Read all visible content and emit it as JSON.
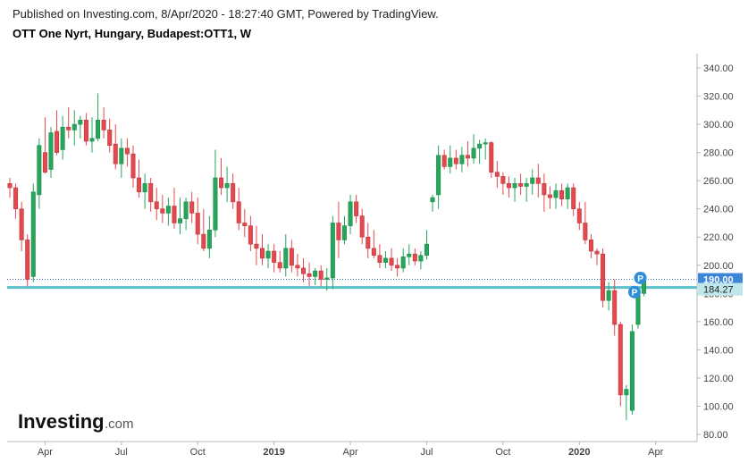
{
  "header": {
    "published": "Published on Investing.com, 8/Apr/2020 - 18:27:40 GMT, Powered by TradingView.",
    "title": "OTT One Nyrt, Hungary, Budapest:OTT1, W"
  },
  "logo": {
    "main": "Investing",
    "suffix": ".com"
  },
  "colors": {
    "up": "#26a65b",
    "down": "#e5484d",
    "line": "#5bc0c8",
    "price_tag": "#3b86d8",
    "badge": "#2f8fd8"
  },
  "chart_data": {
    "type": "candlestick",
    "title": "OTT One Nyrt, Hungary, Budapest:OTT1, W",
    "ylim": [
      80,
      340
    ],
    "y_ticks": [
      "340.00",
      "320.00",
      "300.00",
      "280.00",
      "260.00",
      "240.00",
      "220.00",
      "200.00",
      "180.00",
      "160.00",
      "140.00",
      "120.00",
      "100.00",
      "80.00"
    ],
    "x_ticks": [
      {
        "label": "Apr",
        "week": 6
      },
      {
        "label": "Jul",
        "week": 19
      },
      {
        "label": "Oct",
        "week": 32
      },
      {
        "label": "2019",
        "week": 45
      },
      {
        "label": "Apr",
        "week": 58
      },
      {
        "label": "Jul",
        "week": 71
      },
      {
        "label": "Oct",
        "week": 84
      },
      {
        "label": "2020",
        "week": 97
      },
      {
        "label": "Apr",
        "week": 110
      }
    ],
    "last_price": "190.00",
    "horizontal_line": "184.27",
    "badges": [
      "P",
      "P"
    ],
    "candles": [
      [
        0,
        258,
        262,
        248,
        255
      ],
      [
        1,
        255,
        258,
        233,
        240
      ],
      [
        2,
        240,
        245,
        210,
        218
      ],
      [
        3,
        218,
        222,
        185,
        190
      ],
      [
        4,
        192,
        258,
        188,
        252
      ],
      [
        5,
        250,
        290,
        240,
        285
      ],
      [
        6,
        280,
        305,
        265,
        266
      ],
      [
        7,
        268,
        298,
        262,
        294
      ],
      [
        8,
        295,
        310,
        278,
        280
      ],
      [
        9,
        282,
        306,
        275,
        298
      ],
      [
        10,
        298,
        312,
        290,
        296
      ],
      [
        11,
        296,
        310,
        285,
        300
      ],
      [
        12,
        300,
        306,
        290,
        303
      ],
      [
        13,
        303,
        308,
        285,
        288
      ],
      [
        14,
        288,
        305,
        280,
        290
      ],
      [
        15,
        290,
        322,
        288,
        303
      ],
      [
        16,
        303,
        312,
        290,
        296
      ],
      [
        17,
        296,
        304,
        280,
        285
      ],
      [
        18,
        286,
        300,
        268,
        272
      ],
      [
        19,
        272,
        290,
        262,
        283
      ],
      [
        20,
        283,
        290,
        270,
        279
      ],
      [
        21,
        279,
        285,
        255,
        262
      ],
      [
        22,
        262,
        275,
        248,
        252
      ],
      [
        23,
        252,
        265,
        240,
        258
      ],
      [
        24,
        258,
        262,
        238,
        245
      ],
      [
        25,
        245,
        255,
        232,
        240
      ],
      [
        26,
        240,
        250,
        230,
        237
      ],
      [
        27,
        237,
        248,
        228,
        242
      ],
      [
        28,
        242,
        255,
        226,
        230
      ],
      [
        29,
        230,
        248,
        222,
        233
      ],
      [
        30,
        233,
        248,
        225,
        245
      ],
      [
        31,
        245,
        252,
        230,
        237
      ],
      [
        32,
        237,
        248,
        215,
        222
      ],
      [
        33,
        222,
        240,
        210,
        212
      ],
      [
        34,
        212,
        235,
        205,
        225
      ],
      [
        35,
        225,
        282,
        220,
        262
      ],
      [
        36,
        262,
        276,
        250,
        255
      ],
      [
        37,
        255,
        270,
        245,
        258
      ],
      [
        38,
        258,
        265,
        240,
        245
      ],
      [
        39,
        245,
        255,
        225,
        230
      ],
      [
        40,
        230,
        240,
        220,
        228
      ],
      [
        41,
        228,
        235,
        210,
        215
      ],
      [
        42,
        215,
        228,
        200,
        212
      ],
      [
        43,
        212,
        222,
        200,
        205
      ],
      [
        44,
        205,
        215,
        198,
        210
      ],
      [
        45,
        210,
        215,
        195,
        202
      ],
      [
        46,
        202,
        210,
        195,
        198
      ],
      [
        47,
        198,
        222,
        192,
        212
      ],
      [
        48,
        212,
        218,
        195,
        200
      ],
      [
        49,
        200,
        208,
        192,
        198
      ],
      [
        50,
        198,
        205,
        188,
        194
      ],
      [
        51,
        194,
        202,
        185,
        192
      ],
      [
        52,
        192,
        198,
        186,
        196
      ],
      [
        53,
        196,
        200,
        185,
        190
      ],
      [
        54,
        190,
        198,
        182,
        191
      ],
      [
        55,
        191,
        235,
        183,
        230
      ],
      [
        56,
        230,
        245,
        205,
        218
      ],
      [
        57,
        218,
        235,
        215,
        228
      ],
      [
        58,
        228,
        250,
        222,
        245
      ],
      [
        59,
        245,
        250,
        230,
        235
      ],
      [
        60,
        235,
        240,
        215,
        220
      ],
      [
        61,
        220,
        230,
        205,
        212
      ],
      [
        62,
        212,
        225,
        205,
        207
      ],
      [
        63,
        207,
        215,
        198,
        202
      ],
      [
        64,
        202,
        210,
        198,
        205
      ],
      [
        65,
        205,
        212,
        196,
        200
      ],
      [
        66,
        200,
        205,
        192,
        198
      ],
      [
        67,
        198,
        212,
        195,
        206
      ],
      [
        68,
        206,
        215,
        200,
        208
      ],
      [
        69,
        208,
        212,
        200,
        203
      ],
      [
        70,
        203,
        210,
        197,
        207
      ],
      [
        71,
        207,
        225,
        204,
        215
      ],
      [
        72,
        245,
        250,
        238,
        248
      ],
      [
        73,
        250,
        285,
        240,
        278
      ],
      [
        74,
        278,
        282,
        268,
        270
      ],
      [
        75,
        270,
        285,
        265,
        276
      ],
      [
        76,
        276,
        282,
        268,
        272
      ],
      [
        77,
        272,
        284,
        266,
        278
      ],
      [
        78,
        278,
        288,
        270,
        276
      ],
      [
        79,
        276,
        293,
        272,
        283
      ],
      [
        80,
        283,
        289,
        272,
        286
      ],
      [
        81,
        286,
        290,
        275,
        287
      ],
      [
        82,
        287,
        288,
        262,
        266
      ],
      [
        83,
        266,
        274,
        255,
        263
      ],
      [
        84,
        263,
        266,
        250,
        258
      ],
      [
        85,
        258,
        263,
        248,
        255
      ],
      [
        86,
        255,
        262,
        245,
        258
      ],
      [
        87,
        258,
        265,
        250,
        256
      ],
      [
        88,
        256,
        262,
        245,
        258
      ],
      [
        89,
        258,
        268,
        250,
        262
      ],
      [
        90,
        262,
        272,
        248,
        258
      ],
      [
        91,
        258,
        265,
        238,
        250
      ],
      [
        92,
        250,
        256,
        240,
        248
      ],
      [
        93,
        248,
        258,
        240,
        253
      ],
      [
        94,
        253,
        258,
        242,
        247
      ],
      [
        95,
        247,
        258,
        240,
        255
      ],
      [
        96,
        255,
        258,
        235,
        240
      ],
      [
        97,
        240,
        245,
        225,
        230
      ],
      [
        98,
        230,
        245,
        215,
        218
      ],
      [
        99,
        218,
        222,
        205,
        210
      ],
      [
        100,
        210,
        212,
        200,
        208
      ],
      [
        101,
        208,
        212,
        170,
        175
      ],
      [
        102,
        175,
        188,
        168,
        182
      ],
      [
        103,
        182,
        190,
        150,
        158
      ],
      [
        104,
        158,
        160,
        100,
        108
      ],
      [
        105,
        108,
        115,
        90,
        112
      ],
      [
        106,
        97,
        158,
        94,
        153
      ],
      [
        107,
        158,
        185,
        155,
        180
      ],
      [
        108,
        180,
        195,
        178,
        190
      ]
    ]
  }
}
